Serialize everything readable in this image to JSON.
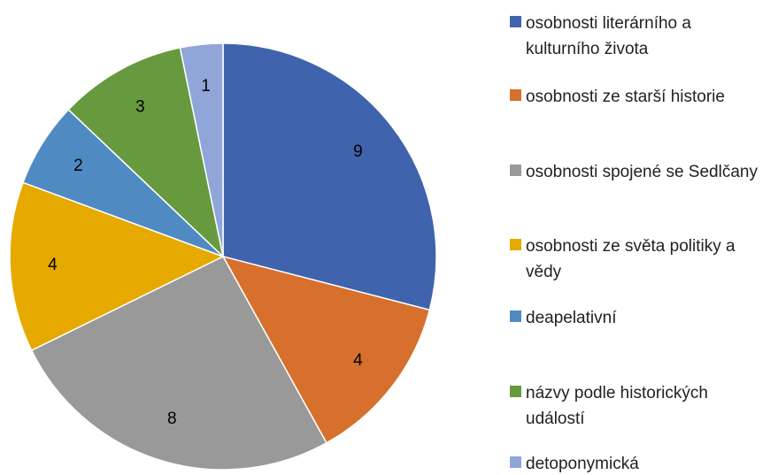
{
  "chart_data": {
    "type": "pie",
    "categories": [
      "osobnosti literárního a kulturního života",
      "osobnosti ze starší historie",
      "osobnosti spojené se Sedlčany",
      "osobnosti ze světa politiky a vědy",
      "deapelativní",
      "názvy podle historických událostí",
      "detoponymická"
    ],
    "values": [
      9,
      4,
      8,
      4,
      2,
      3,
      1
    ],
    "colors": [
      "#3f63ad",
      "#d6702c",
      "#999999",
      "#e6a900",
      "#4f8bc2",
      "#67993e",
      "#90a6d8"
    ],
    "legend": "right"
  }
}
